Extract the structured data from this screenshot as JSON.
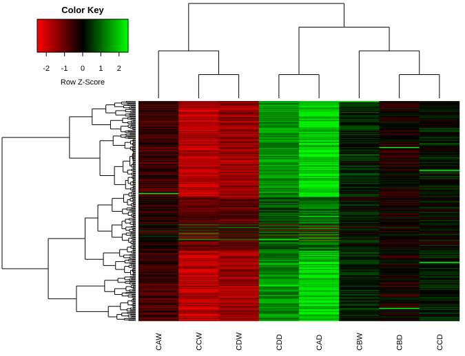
{
  "chart_data": {
    "type": "heatmap",
    "title": "",
    "xlabel": "",
    "ylabel": "",
    "columns": [
      "CAW",
      "CCW",
      "CDW",
      "CDD",
      "CAD",
      "CBW",
      "CBD",
      "CCD"
    ],
    "column_dendrogram": "((CAW,(CCW,CDW)),((CDD,CAD),(CBW,(CBD,CCD))))",
    "row_count": 220,
    "row_dendrogram_shown": true,
    "color_scale": {
      "low": "#ff0000",
      "mid": "#000000",
      "high": "#00ff00"
    },
    "column_pattern_z": {
      "CAW": -0.6,
      "CCW": -1.8,
      "CDW": -1.5,
      "CDD": 1.4,
      "CAD": 2.0,
      "CBW": 0.3,
      "CBD": -0.2,
      "CCD": 0.2
    },
    "color_key": {
      "title": "Color Key",
      "xlabel": "Row Z-Score",
      "ticks": [
        "-2",
        "-1",
        "0",
        "1",
        "2"
      ],
      "tick_values": [
        -2,
        -1,
        0,
        1,
        2
      ],
      "range": [
        -2.5,
        2.5
      ]
    }
  }
}
